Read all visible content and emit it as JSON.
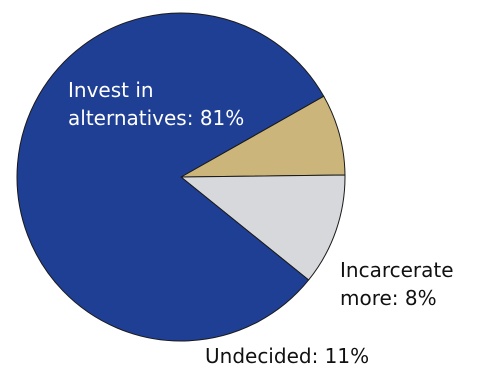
{
  "chart_data": {
    "type": "pie",
    "title": "",
    "slices": [
      {
        "label": "Invest in alternatives",
        "value": 81,
        "display_lines": [
          "Invest in",
          "alternatives: 81%"
        ],
        "color": "#1f3f95"
      },
      {
        "label": "Incarcerate more",
        "value": 8,
        "display_lines": [
          "Incarcerate",
          "more: 8%"
        ],
        "color": "#cbb57a"
      },
      {
        "label": "Undecided",
        "value": 11,
        "display_lines": [
          "Undecided: 11%"
        ],
        "color": "#d6d8db"
      }
    ]
  }
}
